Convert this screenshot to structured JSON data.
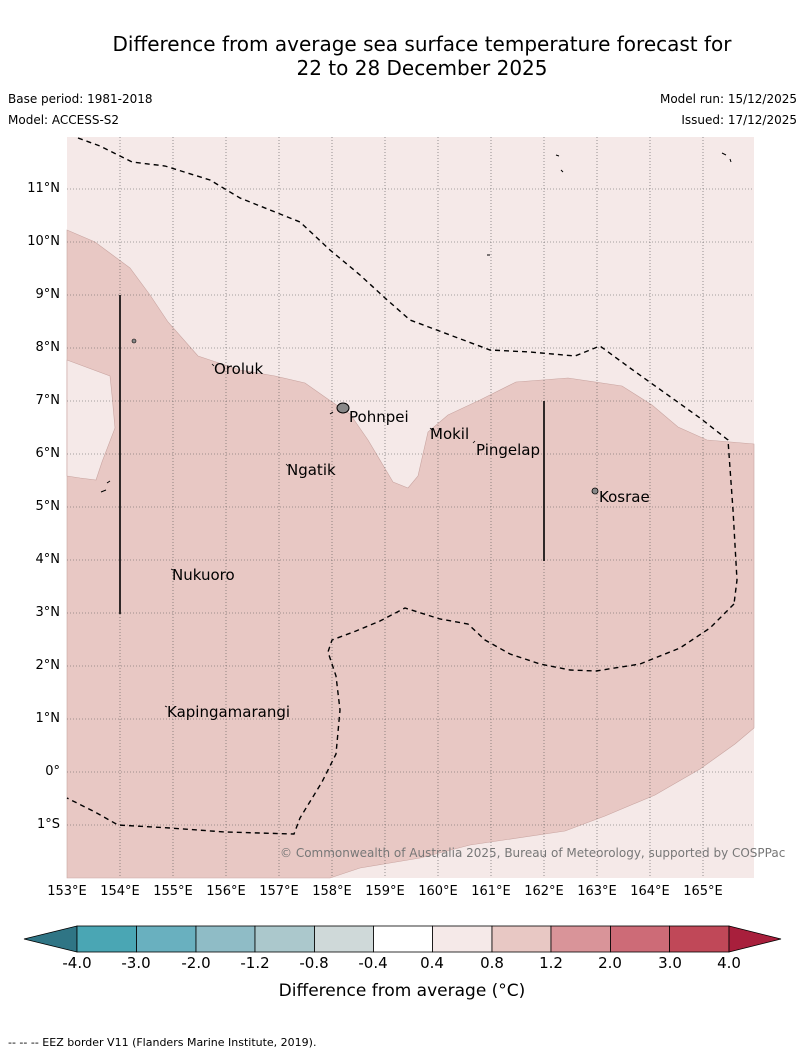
{
  "title": {
    "line1": "Difference from average sea surface temperature forecast for",
    "line2": "22 to 28 December 2025"
  },
  "meta": {
    "base_period": "Base period: 1981-2018",
    "model": "Model: ACCESS-S2",
    "model_run": "Model run: 15/12/2025",
    "issued": "Issued: 17/12/2025"
  },
  "axes": {
    "lat_labels": [
      "11°N",
      "10°N",
      "9°N",
      "8°N",
      "7°N",
      "6°N",
      "5°N",
      "4°N",
      "3°N",
      "2°N",
      "1°N",
      "0°",
      "1°S"
    ],
    "lon_labels": [
      "153°E",
      "154°E",
      "155°E",
      "156°E",
      "157°E",
      "158°E",
      "159°E",
      "160°E",
      "161°E",
      "162°E",
      "163°E",
      "164°E",
      "165°E"
    ]
  },
  "places": {
    "oroluk": "Oroluk",
    "pohnpei": "Pohnpei",
    "mokil": "Mokil",
    "pingelap": "Pingelap",
    "ngatik": "Ngatik",
    "kosrae": "Kosrae",
    "nukuoro": "Nukuoro",
    "kapingamarangi": "Kapingamarangi"
  },
  "copyright": "© Commonwealth of Australia 2025, Bureau of Meteorology, supported by COSPPac",
  "colorbar": {
    "ticks": [
      "-4.0",
      "-3.0",
      "-2.0",
      "-1.2",
      "-0.8",
      "-0.4",
      "0.4",
      "0.8",
      "1.2",
      "2.0",
      "3.0",
      "4.0"
    ],
    "title": "Difference from average (°C)",
    "colors": {
      "under": "#2f7585",
      "c1": "#4aa6b4",
      "c2": "#69b0bf",
      "c3": "#8fbcc6",
      "c4": "#abc8cc",
      "c5": "#cfd9d9",
      "c6": "#ffffff",
      "c7": "#f5e9e8",
      "c8": "#e8c8c4",
      "c9": "#d99499",
      "c10": "#cd6b77",
      "c11": "#c04858",
      "over": "#a81f3c"
    }
  },
  "footer": "--  --  -- EEZ border V11 (Flanders Marine Institute, 2019)."
}
